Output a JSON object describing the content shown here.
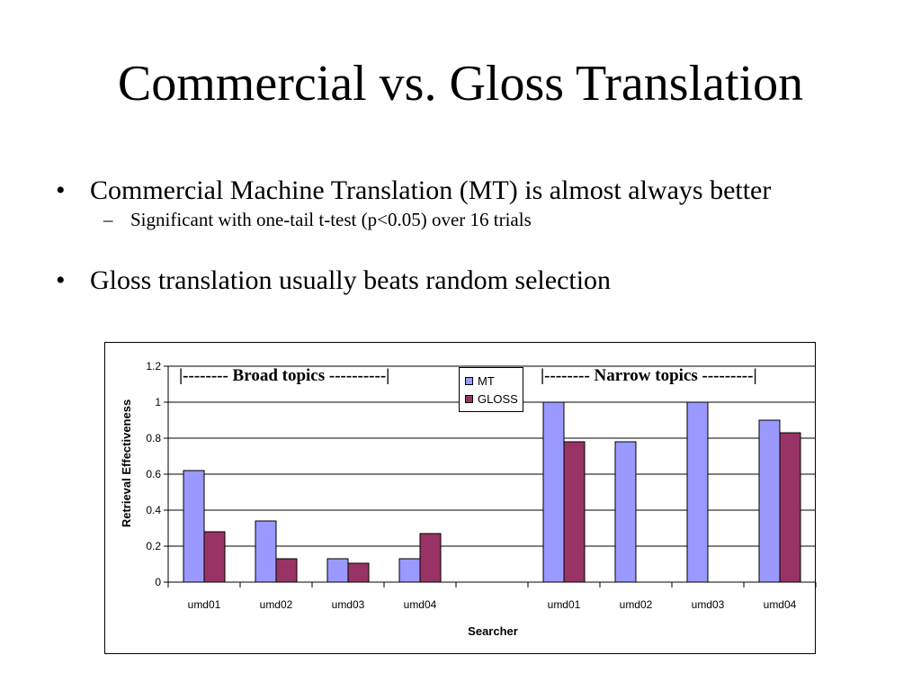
{
  "slide": {
    "title": "Commercial vs. Gloss Translation",
    "bullets": [
      {
        "text": "Commercial Machine Translation (MT) is almost always better",
        "sub": [
          "Significant with one-tail t-test (p<0.05) over 16 trials"
        ]
      },
      {
        "text": "Gloss translation usually beats random selection",
        "sub": []
      }
    ],
    "bullet_glyph": "•",
    "sub_glyph": "–"
  },
  "chart_data": {
    "type": "bar",
    "xlabel": "Searcher",
    "ylabel": "Retrieval Effectiveness",
    "ylim": [
      0,
      1.2
    ],
    "yticks": [
      "0",
      "0.2",
      "0.4",
      "0.6",
      "0.8",
      "1",
      "1.2"
    ],
    "categories": [
      "umd01",
      "umd02",
      "umd03",
      "umd04",
      "",
      "umd01",
      "umd02",
      "umd03",
      "umd04"
    ],
    "series": [
      {
        "name": "MT",
        "color": "#9999ff",
        "values": [
          0.62,
          0.34,
          0.13,
          0.13,
          null,
          1.0,
          0.78,
          1.0,
          0.9
        ]
      },
      {
        "name": "GLOSS",
        "color": "#993366",
        "values": [
          0.28,
          0.13,
          0.105,
          0.27,
          null,
          0.78,
          null,
          null,
          0.83
        ]
      }
    ],
    "annotations": [
      "|-------- Broad topics ----------|",
      "|-------- Narrow topics ---------|"
    ],
    "grid": true,
    "legend_position": "top-center"
  }
}
